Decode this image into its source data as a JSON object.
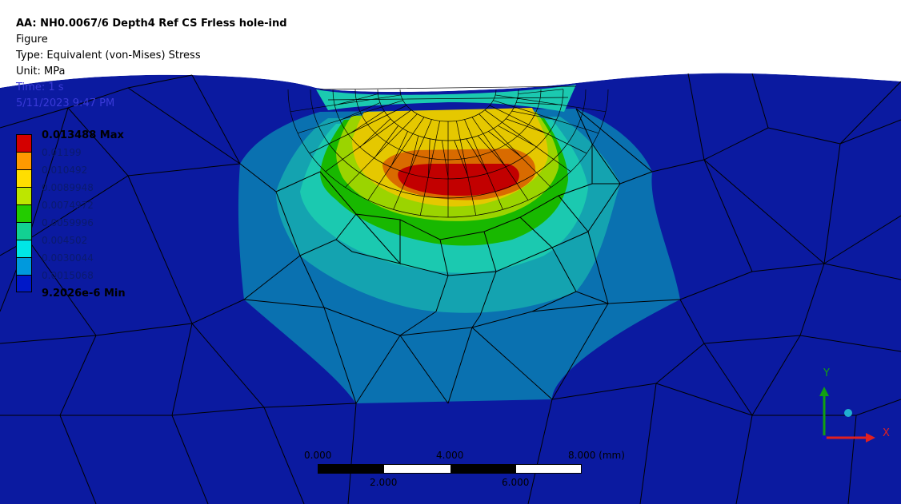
{
  "header": {
    "title": "AA: NH0.0067/6 Depth4 Ref CS Frless hole-ind",
    "line2": "Figure",
    "line3": "Type: Equivalent (von-Mises) Stress",
    "line4": "Unit: MPa",
    "line5": "Time: 1 s",
    "line6": "5/11/2023 9:47 PM"
  },
  "legend": {
    "max_label": "0.013488 Max",
    "min_label": "9.2026e-6 Min",
    "levels": [
      "0.01199",
      "0.010492",
      "0.0089948",
      "0.0074972",
      "0.0059996",
      "0.004502",
      "0.0030044",
      "0.0015068"
    ],
    "colors": [
      "#d40000",
      "#ff9a00",
      "#ffde00",
      "#bde600",
      "#23cc00",
      "#12d192",
      "#00e6e6",
      "#0099dd",
      "#0018c8"
    ]
  },
  "scale_bar": {
    "labels_top": [
      "0.000",
      "4.000",
      "8.000 (mm)"
    ],
    "labels_bottom": [
      "2.000",
      "6.000"
    ]
  },
  "triad": {
    "x_label": "X",
    "y_label": "Y"
  },
  "colors": {
    "background_mesh": "#0b1aa0",
    "outer_band": "#0a71b0",
    "teal_band": "#14a3b0",
    "cyan_band": "#1bc9b0",
    "green_band": "#18b800",
    "lime_band": "#9bd400",
    "yellow_band": "#e5c800",
    "orange_band": "#d96b00",
    "red_core": "#c20000"
  }
}
